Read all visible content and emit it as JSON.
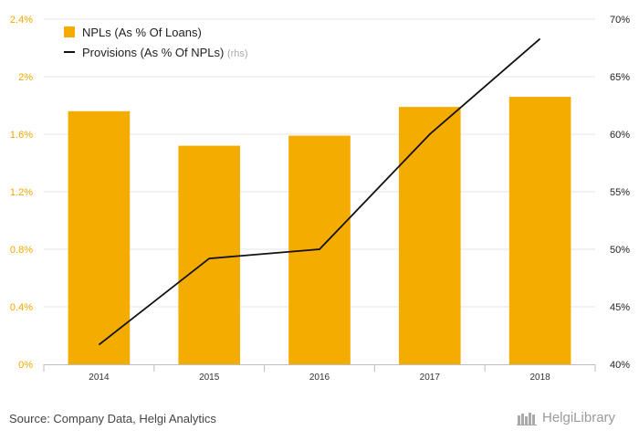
{
  "chart_data": {
    "type": "bar+line",
    "categories": [
      "2014",
      "2015",
      "2016",
      "2017",
      "2018"
    ],
    "series": [
      {
        "name": "NPLs (As % Of Loans)",
        "type": "bar",
        "axis": "left",
        "color": "#f5ac00",
        "values": [
          1.76,
          1.52,
          1.59,
          1.79,
          1.86
        ]
      },
      {
        "name": "Provisions (As % Of NPLs)",
        "suffix": "(rhs)",
        "type": "line",
        "axis": "right",
        "color": "#111111",
        "values": [
          41.7,
          49.2,
          50.0,
          60.0,
          68.3
        ]
      }
    ],
    "left_axis": {
      "min": 0,
      "max": 2.4,
      "ticks": [
        0,
        0.4,
        0.8,
        1.2,
        1.6,
        2.0,
        2.4
      ],
      "tick_labels": [
        "0%",
        "0.4%",
        "0.8%",
        "1.2%",
        "1.6%",
        "2%",
        "2.4%"
      ]
    },
    "right_axis": {
      "min": 40,
      "max": 70,
      "ticks": [
        40,
        45,
        50,
        55,
        60,
        65,
        70
      ],
      "tick_labels": [
        "40%",
        "45%",
        "50%",
        "55%",
        "60%",
        "65%",
        "70%"
      ]
    },
    "grid": true,
    "legend_position": "top-left"
  },
  "footer": {
    "source": "Source: Company Data, Helgi Analytics",
    "brand": "HelgiLibrary"
  }
}
